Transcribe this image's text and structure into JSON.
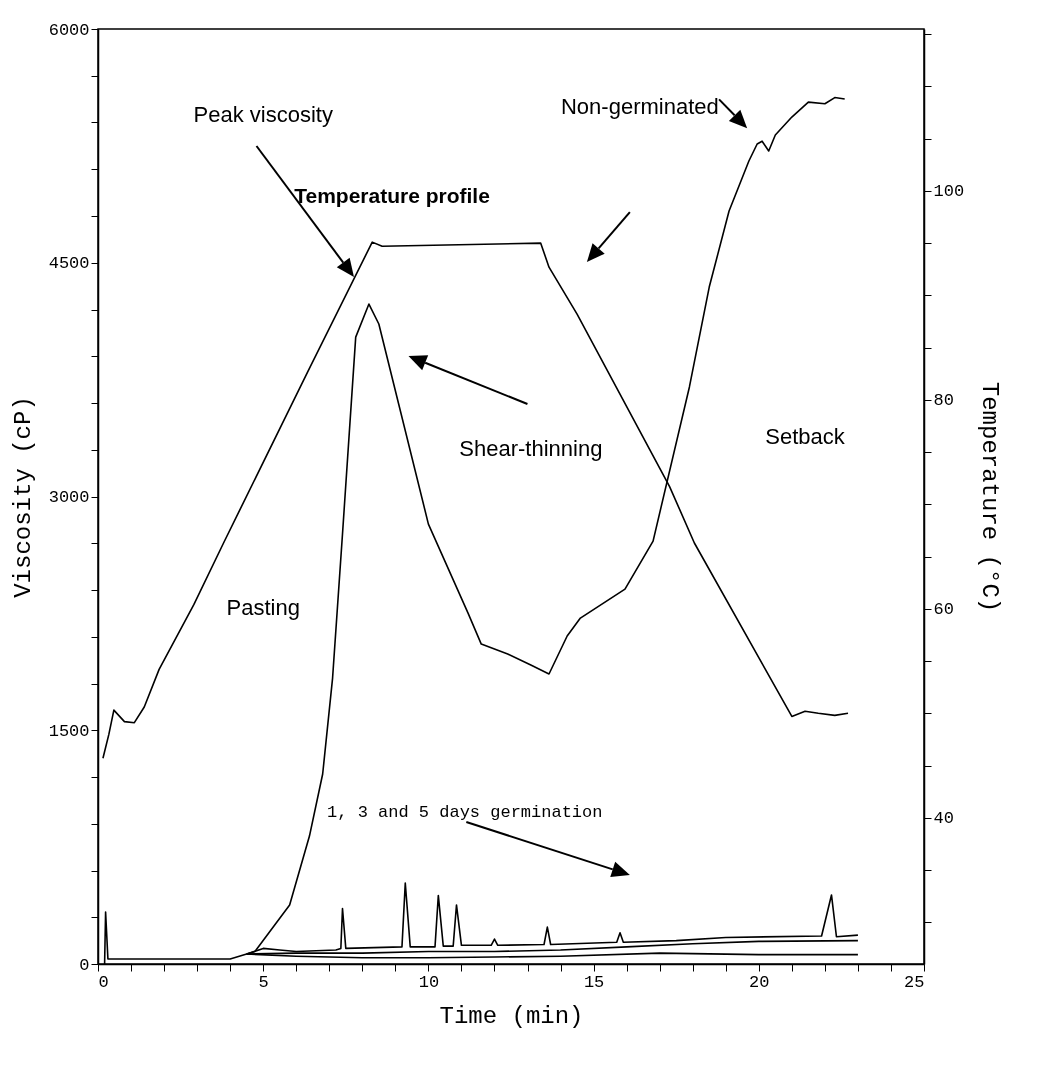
{
  "chart_data": {
    "type": "line",
    "xlabel": "Time (min)",
    "ylabel": "Viscosity (cP)",
    "y2label": "Temperature (°C)",
    "xlim": [
      0,
      25
    ],
    "xticks": [
      0,
      {
        "value": 1,
        "label": null
      },
      {
        "value": 2,
        "label": null
      },
      {
        "value": 3,
        "label": null
      },
      {
        "value": 4,
        "label": null
      },
      5,
      {
        "value": 6,
        "label": null
      },
      {
        "value": 7,
        "label": null
      },
      {
        "value": 8,
        "label": null
      },
      {
        "value": 9,
        "label": null
      },
      10,
      {
        "value": 11,
        "label": null
      },
      {
        "value": 12,
        "label": null
      },
      {
        "value": 13,
        "label": null
      },
      {
        "value": 14,
        "label": null
      },
      15,
      {
        "value": 16,
        "label": null
      },
      {
        "value": 17,
        "label": null
      },
      {
        "value": 18,
        "label": null
      },
      {
        "value": 19,
        "label": null
      },
      20,
      {
        "value": 21,
        "label": null
      },
      {
        "value": 22,
        "label": null
      },
      {
        "value": 23,
        "label": null
      },
      {
        "value": 24,
        "label": null
      },
      25
    ],
    "ylim": [
      0,
      6000
    ],
    "yticks": [
      0,
      {
        "value": 300,
        "label": null
      },
      {
        "value": 600,
        "label": null
      },
      {
        "value": 900,
        "label": null
      },
      {
        "value": 1200,
        "label": null
      },
      1500,
      {
        "value": 1800,
        "label": null
      },
      {
        "value": 2100,
        "label": null
      },
      {
        "value": 2400,
        "label": null
      },
      {
        "value": 2700,
        "label": null
      },
      3000,
      {
        "value": 3300,
        "label": null
      },
      {
        "value": 3600,
        "label": null
      },
      {
        "value": 3900,
        "label": null
      },
      {
        "value": 4200,
        "label": null
      },
      4500,
      {
        "value": 4800,
        "label": null
      },
      {
        "value": 5100,
        "label": null
      },
      {
        "value": 5400,
        "label": null
      },
      {
        "value": 5700,
        "label": null
      },
      6000
    ],
    "y2lim": [
      26,
      115.5
    ],
    "y2ticks": [
      {
        "value": 30,
        "label": null
      },
      {
        "value": 35,
        "label": null
      },
      40,
      {
        "value": 45,
        "label": null
      },
      {
        "value": 50,
        "label": null
      },
      {
        "value": 55,
        "label": null
      },
      60,
      {
        "value": 65,
        "label": null
      },
      {
        "value": 70,
        "label": null
      },
      {
        "value": 75,
        "label": null
      },
      80,
      {
        "value": 85,
        "label": null
      },
      {
        "value": 90,
        "label": null
      },
      {
        "value": 95,
        "label": null
      },
      100,
      {
        "value": 105,
        "label": null
      },
      {
        "value": 110,
        "label": null
      },
      {
        "value": 115,
        "label": null
      }
    ],
    "series": [
      {
        "color": "#000000",
        "x": [
          0.2,
          0.23,
          0.3,
          1,
          2,
          3,
          4,
          4.5,
          4.75,
          5.8,
          6.4,
          6.8,
          7.1,
          7.4,
          7.8,
          8.2,
          8.5,
          9.1,
          10,
          11.2,
          11.6,
          12.4,
          13.1,
          13.65,
          14.2,
          14.6,
          15.95,
          16.8,
          17.9,
          18.5,
          19.1,
          19.7,
          19.95,
          20.1,
          20.3,
          20.5,
          21,
          21.5,
          22,
          22.3,
          22.6
        ],
        "values": [
          0,
          334,
          32,
          32,
          32,
          32,
          32,
          64,
          80,
          379,
          821,
          1219,
          1835,
          2759,
          4023,
          4235,
          4107,
          3594,
          2823,
          2252,
          2053,
          1989,
          1919,
          1861,
          2105,
          2220,
          2406,
          2714,
          3703,
          4344,
          4832,
          5153,
          5262,
          5280,
          5217,
          5320,
          5435,
          5531,
          5520,
          5560,
          5551
        ]
      },
      {
        "color": "#000000",
        "axis": "y2",
        "x": [
          0.15,
          0.33,
          0.48,
          0.8,
          1.1,
          1.4,
          1.85,
          2.9,
          3.8,
          6.35,
          8.3,
          8.6,
          13.4,
          13.65,
          14.5,
          17.3,
          18.05,
          21.0,
          21.4,
          21.8,
          22.3,
          22.7
        ],
        "values": [
          45.7,
          48,
          50.3,
          49.2,
          49.1,
          50.6,
          54.2,
          60.4,
          66.3,
          82.7,
          95.1,
          94.7,
          95,
          92.7,
          88.2,
          71.7,
          66.3,
          49.7,
          50.2,
          50.0,
          49.8,
          50.0
        ]
      },
      {
        "color": "#000000",
        "x": [
          4.5,
          5,
          5.5,
          6,
          7.2,
          7.35,
          7.4,
          7.5,
          9.2,
          9.3,
          9.45,
          10.2,
          10.3,
          10.45,
          10.75,
          10.85,
          11,
          11.9,
          12,
          12.1,
          13.5,
          13.6,
          13.7,
          15.7,
          15.8,
          15.9,
          17.5,
          19,
          21.9,
          22.2,
          22.35,
          23
        ],
        "values": [
          64,
          100,
          90,
          80,
          90,
          100,
          356,
          100,
          110,
          520,
          110,
          110,
          440,
          115,
          115,
          379,
          120,
          120,
          160,
          120,
          125,
          237,
          125,
          140,
          200,
          140,
          150,
          170,
          180,
          443,
          175,
          185
        ]
      },
      {
        "color": "#000000",
        "x": [
          4.5,
          6,
          8,
          10,
          12,
          14,
          16,
          18,
          20,
          23
        ],
        "values": [
          64,
          70,
          70,
          80,
          80,
          90,
          110,
          130,
          145,
          150
        ]
      },
      {
        "color": "#000000",
        "x": [
          4.5,
          6,
          8,
          10,
          12,
          14,
          17,
          20,
          23
        ],
        "values": [
          64,
          50,
          40,
          40,
          45,
          50,
          70,
          60,
          60
        ]
      }
    ],
    "annotations": [
      "Non-germinated",
      "Peak viscosity",
      "Temperature profile",
      "Shear-thinning",
      "Setback",
      "Pasting",
      "1, 3 and 5 days germination"
    ]
  }
}
